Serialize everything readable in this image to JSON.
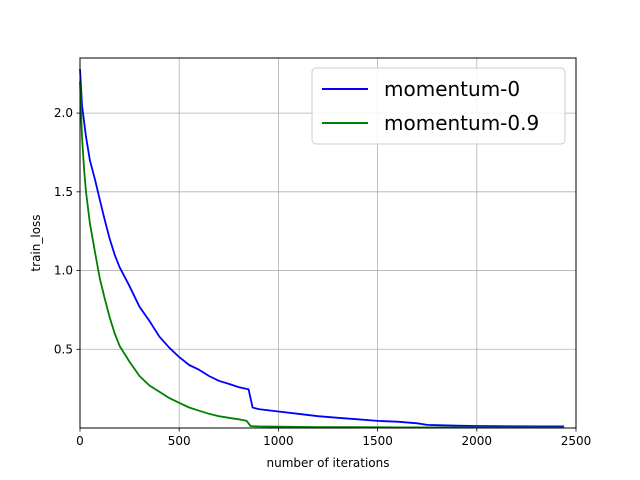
{
  "chart_data": {
    "type": "line",
    "title": "",
    "xlabel": "number of iterations",
    "ylabel": "train_loss",
    "xlim": [
      0,
      2500
    ],
    "ylim": [
      0.0,
      2.35
    ],
    "xticks": [
      0,
      500,
      1000,
      1500,
      2000,
      2500
    ],
    "yticks": [
      0.5,
      1.0,
      1.5,
      2.0
    ],
    "xtick_labels": [
      "0",
      "500",
      "1000",
      "1500",
      "2000",
      "2500"
    ],
    "ytick_labels": [
      "0.5",
      "1.0",
      "1.5",
      "2.0"
    ],
    "grid": true,
    "legend_position": "top-right",
    "series": [
      {
        "name": "momentum-0",
        "color": "#0000ff",
        "x": [
          0,
          10,
          20,
          30,
          50,
          75,
          100,
          125,
          150,
          175,
          200,
          250,
          300,
          350,
          400,
          450,
          500,
          550,
          600,
          650,
          700,
          750,
          800,
          850,
          870,
          900,
          1000,
          1100,
          1200,
          1300,
          1400,
          1500,
          1600,
          1700,
          1750,
          1800,
          1900,
          2000,
          2100,
          2200,
          2300,
          2400,
          2440
        ],
        "y": [
          2.28,
          2.05,
          1.95,
          1.85,
          1.7,
          1.58,
          1.45,
          1.32,
          1.2,
          1.1,
          1.02,
          0.9,
          0.77,
          0.68,
          0.58,
          0.51,
          0.45,
          0.4,
          0.37,
          0.33,
          0.3,
          0.28,
          0.26,
          0.245,
          0.13,
          0.12,
          0.105,
          0.09,
          0.075,
          0.065,
          0.055,
          0.045,
          0.04,
          0.03,
          0.02,
          0.018,
          0.015,
          0.013,
          0.012,
          0.011,
          0.01,
          0.01,
          0.01
        ]
      },
      {
        "name": "momentum-0.9",
        "color": "#008000",
        "x": [
          0,
          10,
          20,
          30,
          50,
          75,
          100,
          125,
          150,
          175,
          200,
          250,
          300,
          350,
          400,
          450,
          500,
          550,
          600,
          650,
          700,
          750,
          800,
          840,
          860,
          900,
          1000,
          1200,
          1400,
          1600,
          1800,
          2000,
          2200,
          2440
        ],
        "y": [
          2.2,
          1.85,
          1.65,
          1.5,
          1.3,
          1.12,
          0.95,
          0.82,
          0.7,
          0.6,
          0.52,
          0.42,
          0.33,
          0.27,
          0.23,
          0.19,
          0.16,
          0.13,
          0.11,
          0.09,
          0.075,
          0.065,
          0.055,
          0.045,
          0.012,
          0.01,
          0.008,
          0.006,
          0.005,
          0.004,
          0.004,
          0.003,
          0.003,
          0.003
        ]
      }
    ]
  }
}
